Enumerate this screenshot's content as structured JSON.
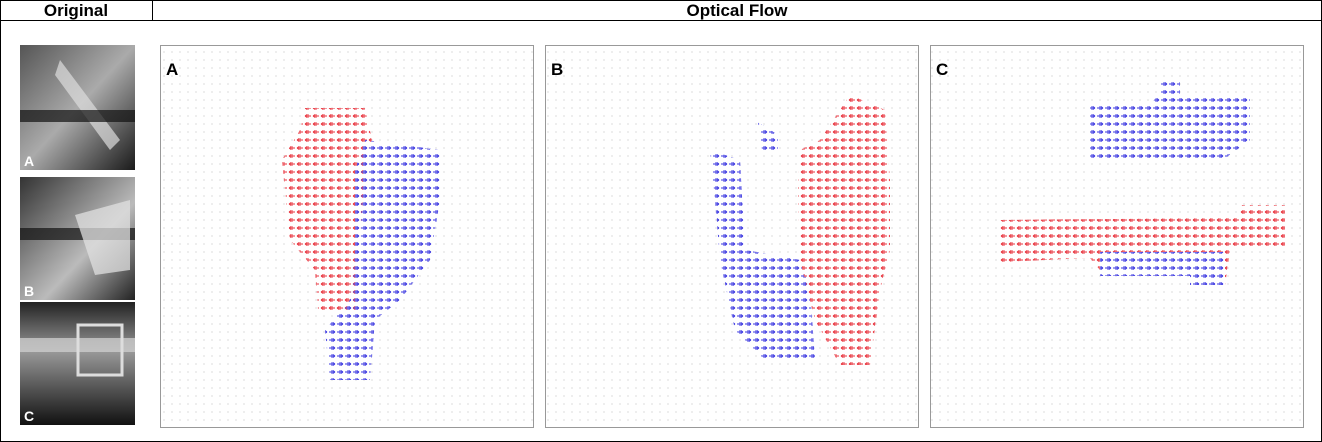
{
  "header": {
    "left": "Original",
    "right": "Optical Flow"
  },
  "originals": [
    {
      "label": "A"
    },
    {
      "label": "B"
    },
    {
      "label": "C"
    }
  ],
  "panels": [
    {
      "label": "A"
    },
    {
      "label": "B"
    },
    {
      "label": "C"
    }
  ]
}
